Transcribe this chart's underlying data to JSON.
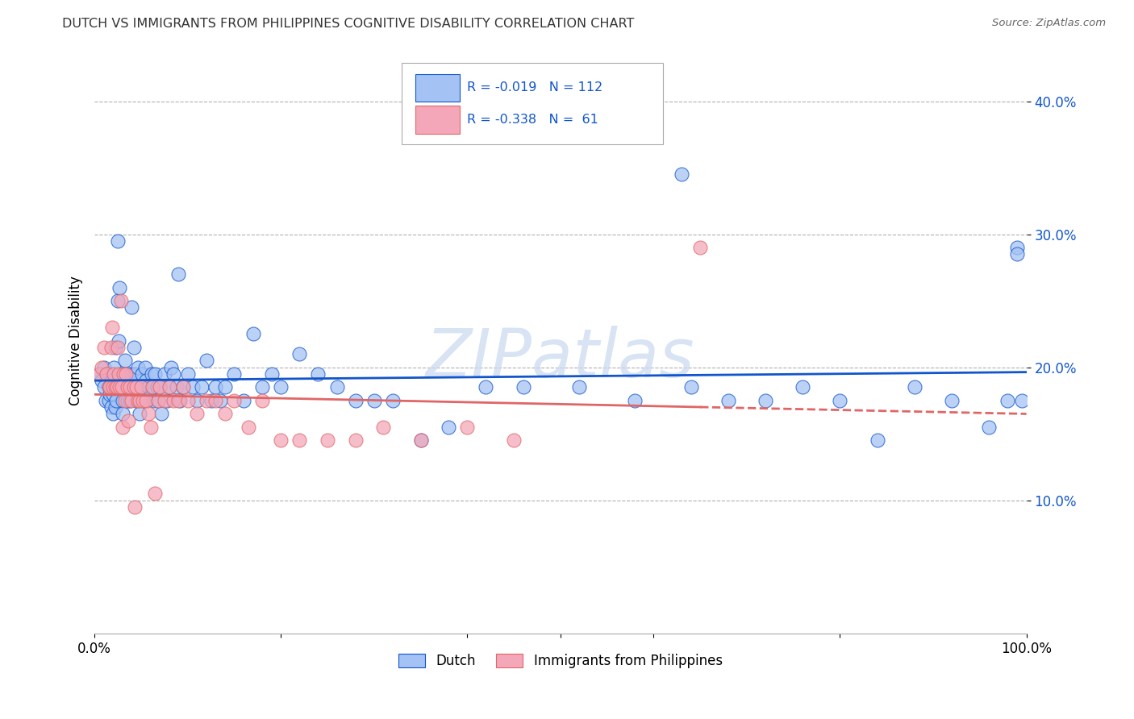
{
  "title": "DUTCH VS IMMIGRANTS FROM PHILIPPINES COGNITIVE DISABILITY CORRELATION CHART",
  "source": "Source: ZipAtlas.com",
  "ylabel": "Cognitive Disability",
  "xlim": [
    0.0,
    1.0
  ],
  "ylim": [
    0.0,
    0.44
  ],
  "yticks": [
    0.1,
    0.2,
    0.3,
    0.4
  ],
  "ytick_labels": [
    "10.0%",
    "20.0%",
    "30.0%",
    "40.0%"
  ],
  "xticks": [
    0.0,
    0.2,
    0.4,
    0.5,
    0.6,
    0.8,
    1.0
  ],
  "xtick_labels": [
    "0.0%",
    "",
    "",
    "",
    "",
    "",
    "100.0%"
  ],
  "dutch_color": "#a4c2f4",
  "philippines_color": "#f4a7b9",
  "dutch_line_color": "#1155cc",
  "philippines_line_color": "#e06666",
  "r_dutch": -0.019,
  "n_dutch": 112,
  "r_philippines": -0.338,
  "n_philippines": 61,
  "legend_label_dutch": "Dutch",
  "legend_label_philippines": "Immigrants from Philippines",
  "background_color": "#ffffff",
  "grid_color": "#b0b0b0",
  "watermark": "ZIPatlas",
  "dutch_x": [
    0.005,
    0.008,
    0.01,
    0.01,
    0.012,
    0.013,
    0.015,
    0.015,
    0.016,
    0.016,
    0.018,
    0.018,
    0.019,
    0.02,
    0.02,
    0.021,
    0.022,
    0.022,
    0.023,
    0.023,
    0.025,
    0.025,
    0.026,
    0.027,
    0.028,
    0.029,
    0.03,
    0.03,
    0.031,
    0.032,
    0.033,
    0.034,
    0.035,
    0.035,
    0.036,
    0.037,
    0.038,
    0.04,
    0.04,
    0.042,
    0.042,
    0.043,
    0.045,
    0.046,
    0.047,
    0.048,
    0.05,
    0.051,
    0.052,
    0.054,
    0.055,
    0.056,
    0.058,
    0.06,
    0.061,
    0.062,
    0.064,
    0.065,
    0.067,
    0.068,
    0.07,
    0.072,
    0.075,
    0.078,
    0.08,
    0.082,
    0.085,
    0.088,
    0.09,
    0.092,
    0.095,
    0.1,
    0.105,
    0.11,
    0.115,
    0.12,
    0.125,
    0.13,
    0.135,
    0.14,
    0.15,
    0.16,
    0.17,
    0.18,
    0.19,
    0.2,
    0.22,
    0.24,
    0.26,
    0.28,
    0.3,
    0.32,
    0.35,
    0.38,
    0.42,
    0.46,
    0.52,
    0.58,
    0.64,
    0.68,
    0.72,
    0.76,
    0.8,
    0.84,
    0.88,
    0.92,
    0.96,
    0.98,
    0.99,
    0.995,
    0.63,
    0.99
  ],
  "dutch_y": [
    0.195,
    0.19,
    0.185,
    0.2,
    0.175,
    0.195,
    0.185,
    0.175,
    0.18,
    0.195,
    0.17,
    0.185,
    0.19,
    0.165,
    0.18,
    0.2,
    0.215,
    0.17,
    0.175,
    0.185,
    0.25,
    0.295,
    0.22,
    0.26,
    0.195,
    0.185,
    0.175,
    0.165,
    0.185,
    0.195,
    0.205,
    0.185,
    0.175,
    0.19,
    0.185,
    0.195,
    0.175,
    0.245,
    0.195,
    0.215,
    0.185,
    0.195,
    0.175,
    0.185,
    0.2,
    0.165,
    0.185,
    0.195,
    0.185,
    0.2,
    0.19,
    0.175,
    0.185,
    0.18,
    0.195,
    0.185,
    0.175,
    0.195,
    0.185,
    0.175,
    0.185,
    0.165,
    0.195,
    0.175,
    0.185,
    0.2,
    0.195,
    0.185,
    0.27,
    0.175,
    0.185,
    0.195,
    0.185,
    0.175,
    0.185,
    0.205,
    0.175,
    0.185,
    0.175,
    0.185,
    0.195,
    0.175,
    0.225,
    0.185,
    0.195,
    0.185,
    0.21,
    0.195,
    0.185,
    0.175,
    0.175,
    0.175,
    0.145,
    0.155,
    0.185,
    0.185,
    0.185,
    0.175,
    0.185,
    0.175,
    0.175,
    0.185,
    0.175,
    0.145,
    0.185,
    0.175,
    0.155,
    0.175,
    0.29,
    0.175,
    0.345,
    0.285
  ],
  "phil_x": [
    0.005,
    0.008,
    0.01,
    0.013,
    0.015,
    0.016,
    0.018,
    0.019,
    0.02,
    0.021,
    0.022,
    0.024,
    0.025,
    0.026,
    0.027,
    0.028,
    0.029,
    0.03,
    0.031,
    0.033,
    0.034,
    0.035,
    0.036,
    0.038,
    0.04,
    0.042,
    0.043,
    0.045,
    0.047,
    0.048,
    0.05,
    0.052,
    0.055,
    0.058,
    0.06,
    0.062,
    0.065,
    0.068,
    0.07,
    0.075,
    0.08,
    0.085,
    0.09,
    0.095,
    0.1,
    0.11,
    0.12,
    0.13,
    0.14,
    0.15,
    0.165,
    0.18,
    0.2,
    0.22,
    0.25,
    0.28,
    0.31,
    0.35,
    0.4,
    0.45,
    0.65
  ],
  "phil_y": [
    0.195,
    0.2,
    0.215,
    0.195,
    0.185,
    0.185,
    0.215,
    0.23,
    0.185,
    0.195,
    0.185,
    0.185,
    0.215,
    0.195,
    0.185,
    0.25,
    0.185,
    0.155,
    0.195,
    0.175,
    0.195,
    0.185,
    0.16,
    0.185,
    0.175,
    0.185,
    0.095,
    0.185,
    0.175,
    0.175,
    0.185,
    0.175,
    0.175,
    0.165,
    0.155,
    0.185,
    0.105,
    0.175,
    0.185,
    0.175,
    0.185,
    0.175,
    0.175,
    0.185,
    0.175,
    0.165,
    0.175,
    0.175,
    0.165,
    0.175,
    0.155,
    0.175,
    0.145,
    0.145,
    0.145,
    0.145,
    0.155,
    0.145,
    0.155,
    0.145,
    0.29
  ]
}
